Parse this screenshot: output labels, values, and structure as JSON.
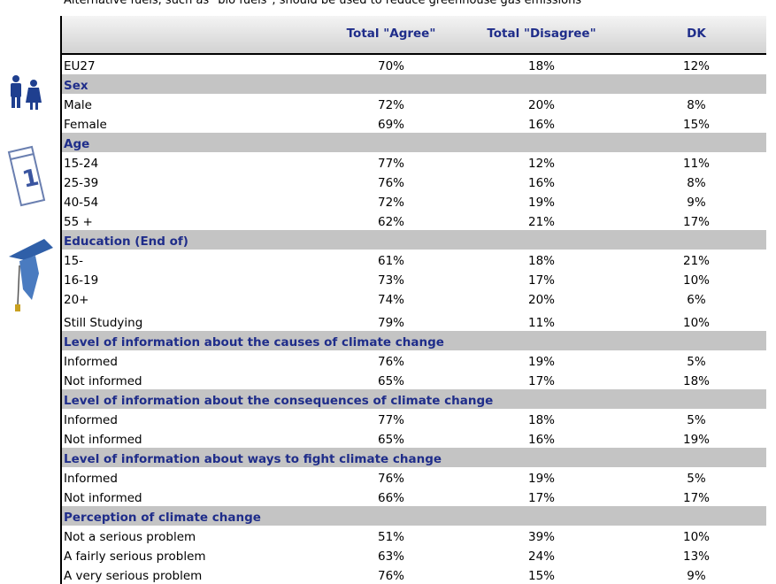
{
  "title": "Alternative fuels, such as \"bio fuels\", should be used to reduce greenhouse gas emissions",
  "table": {
    "columns": [
      "Total \"Agree\"",
      "Total \"Disagree\"",
      "DK"
    ],
    "rows": [
      {
        "label": "EU27",
        "values": [
          "70%",
          "18%",
          "12%"
        ]
      },
      {
        "section": "Sex"
      },
      {
        "label": "Male",
        "values": [
          "72%",
          "20%",
          "8%"
        ]
      },
      {
        "label": "Female",
        "values": [
          "69%",
          "16%",
          "15%"
        ]
      },
      {
        "section": "Age"
      },
      {
        "label": "15-24",
        "values": [
          "77%",
          "12%",
          "11%"
        ]
      },
      {
        "label": "25-39",
        "values": [
          "76%",
          "16%",
          "8%"
        ]
      },
      {
        "label": "40-54",
        "values": [
          "72%",
          "19%",
          "9%"
        ]
      },
      {
        "label": "55 +",
        "values": [
          "62%",
          "21%",
          "17%"
        ]
      },
      {
        "section": "Education (End of)"
      },
      {
        "label": "15-",
        "values": [
          "61%",
          "18%",
          "21%"
        ]
      },
      {
        "label": "16-19",
        "values": [
          "73%",
          "17%",
          "10%"
        ]
      },
      {
        "label": "20+",
        "values": [
          "74%",
          "20%",
          "6%"
        ]
      },
      {
        "label": "Still Studying",
        "values": [
          "79%",
          "11%",
          "10%"
        ]
      },
      {
        "section": "Level of information about the causes of climate change"
      },
      {
        "label": "Informed",
        "values": [
          "76%",
          "19%",
          "5%"
        ]
      },
      {
        "label": "Not informed",
        "values": [
          "65%",
          "17%",
          "18%"
        ]
      },
      {
        "section": "Level of information about the consequences of climate change"
      },
      {
        "label": "Informed",
        "values": [
          "77%",
          "18%",
          "5%"
        ]
      },
      {
        "label": "Not informed",
        "values": [
          "65%",
          "16%",
          "19%"
        ]
      },
      {
        "section": "Level of information about ways to fight climate change"
      },
      {
        "label": "Informed",
        "values": [
          "76%",
          "19%",
          "5%"
        ]
      },
      {
        "label": "Not informed",
        "values": [
          "66%",
          "17%",
          "17%"
        ]
      },
      {
        "section": "Perception of climate change"
      },
      {
        "label": "Not a serious problem",
        "values": [
          "51%",
          "39%",
          "10%"
        ]
      },
      {
        "label": "A fairly serious problem",
        "values": [
          "63%",
          "24%",
          "13%"
        ]
      },
      {
        "label": "A very serious problem",
        "values": [
          "76%",
          "15%",
          "9%"
        ]
      }
    ]
  }
}
